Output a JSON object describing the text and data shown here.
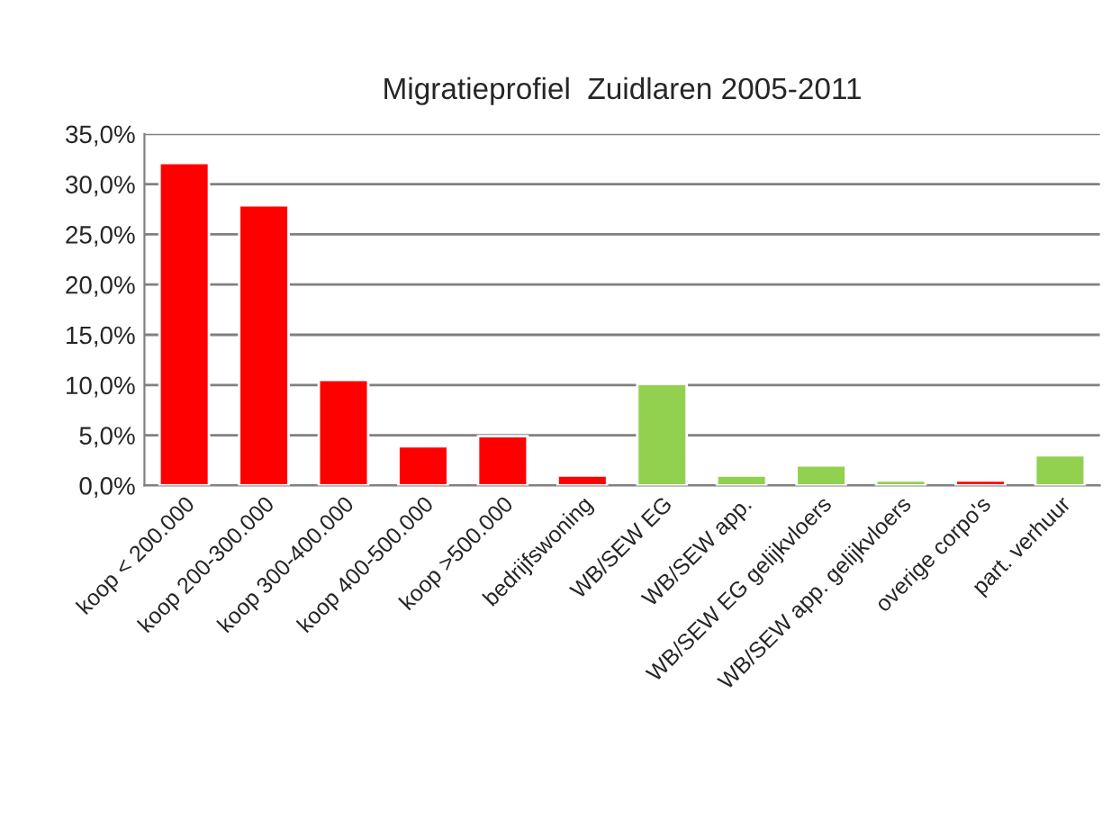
{
  "chart_data": {
    "type": "bar",
    "title": "Migratieprofiel  Zuidlaren 2005-2011",
    "categories": [
      "koop < 200.000",
      "koop 200-300.000",
      "koop 300-400.000",
      "koop 400-500.000",
      "koop >500.000",
      "bedrijfswoning",
      "WB/SEW EG",
      "WB/SEW app.",
      "WB/SEW EG gelijkvloers",
      "WB/SEW app. gelijkvloers",
      "overige corpo's",
      "part. verhuur"
    ],
    "values": [
      32.1,
      27.9,
      10.5,
      3.9,
      4.9,
      1.0,
      10.1,
      1.0,
      2.0,
      0.5,
      0.5,
      3.0
    ],
    "colors": [
      "#ff0000",
      "#ff0000",
      "#ff0000",
      "#ff0000",
      "#ff0000",
      "#ff0000",
      "#92d050",
      "#92d050",
      "#92d050",
      "#92d050",
      "#ff0000",
      "#92d050"
    ],
    "ylim": [
      0,
      35
    ],
    "yticks": [
      {
        "value": 0,
        "label": "0,0%"
      },
      {
        "value": 5,
        "label": "5,0%"
      },
      {
        "value": 10,
        "label": "10,0%"
      },
      {
        "value": 15,
        "label": "15,0%"
      },
      {
        "value": 20,
        "label": "20,0%"
      },
      {
        "value": 25,
        "label": "25,0%"
      },
      {
        "value": 30,
        "label": "30,0%"
      },
      {
        "value": 35,
        "label": "35,0%"
      }
    ],
    "grid": "y",
    "legend": false
  }
}
